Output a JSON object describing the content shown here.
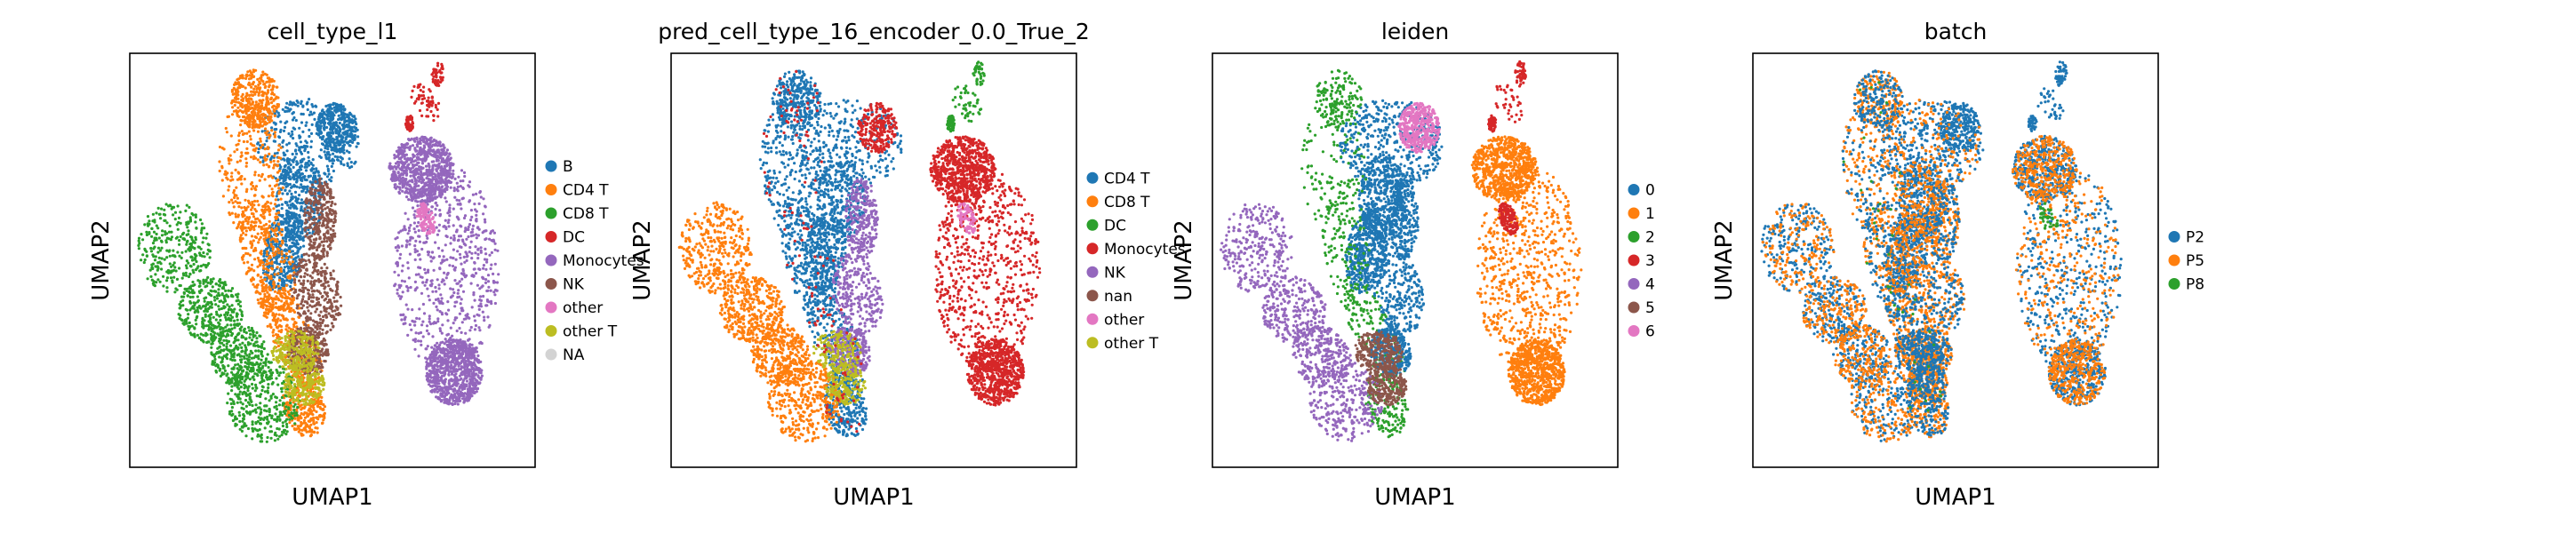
{
  "chart_data": [
    {
      "type": "scatter",
      "title": "cell_type_l1",
      "xlabel": "UMAP1",
      "ylabel": "UMAP2",
      "legend_position": "right",
      "series": [
        {
          "name": "B",
          "color": "#1f77b4"
        },
        {
          "name": "CD4 T",
          "color": "#ff7f0e"
        },
        {
          "name": "CD8 T",
          "color": "#2ca02c"
        },
        {
          "name": "DC",
          "color": "#d62728"
        },
        {
          "name": "Monocytes",
          "color": "#9467bd"
        },
        {
          "name": "NK",
          "color": "#8c564b"
        },
        {
          "name": "other",
          "color": "#e377c2"
        },
        {
          "name": "other T",
          "color": "#bcbd22"
        },
        {
          "name": "NA",
          "color": "#d3d3d3"
        }
      ]
    },
    {
      "type": "scatter",
      "title": "pred_cell_type_16_encoder_0.0_True_2",
      "xlabel": "UMAP1",
      "ylabel": "UMAP2",
      "legend_position": "right",
      "series": [
        {
          "name": "CD4 T",
          "color": "#1f77b4"
        },
        {
          "name": "CD8 T",
          "color": "#ff7f0e"
        },
        {
          "name": "DC",
          "color": "#2ca02c"
        },
        {
          "name": "Monocytes",
          "color": "#d62728"
        },
        {
          "name": "NK",
          "color": "#9467bd"
        },
        {
          "name": "nan",
          "color": "#8c564b"
        },
        {
          "name": "other",
          "color": "#e377c2"
        },
        {
          "name": "other T",
          "color": "#bcbd22"
        }
      ]
    },
    {
      "type": "scatter",
      "title": "leiden",
      "xlabel": "UMAP1",
      "ylabel": "UMAP2",
      "legend_position": "right",
      "series": [
        {
          "name": "0",
          "color": "#1f77b4"
        },
        {
          "name": "1",
          "color": "#ff7f0e"
        },
        {
          "name": "2",
          "color": "#2ca02c"
        },
        {
          "name": "3",
          "color": "#d62728"
        },
        {
          "name": "4",
          "color": "#9467bd"
        },
        {
          "name": "5",
          "color": "#8c564b"
        },
        {
          "name": "6",
          "color": "#e377c2"
        }
      ]
    },
    {
      "type": "scatter",
      "title": "batch",
      "xlabel": "UMAP1",
      "ylabel": "UMAP2",
      "legend_position": "right",
      "series": [
        {
          "name": "P2",
          "color": "#1f77b4"
        },
        {
          "name": "P5",
          "color": "#ff7f0e"
        },
        {
          "name": "P8",
          "color": "#2ca02c"
        }
      ]
    }
  ]
}
